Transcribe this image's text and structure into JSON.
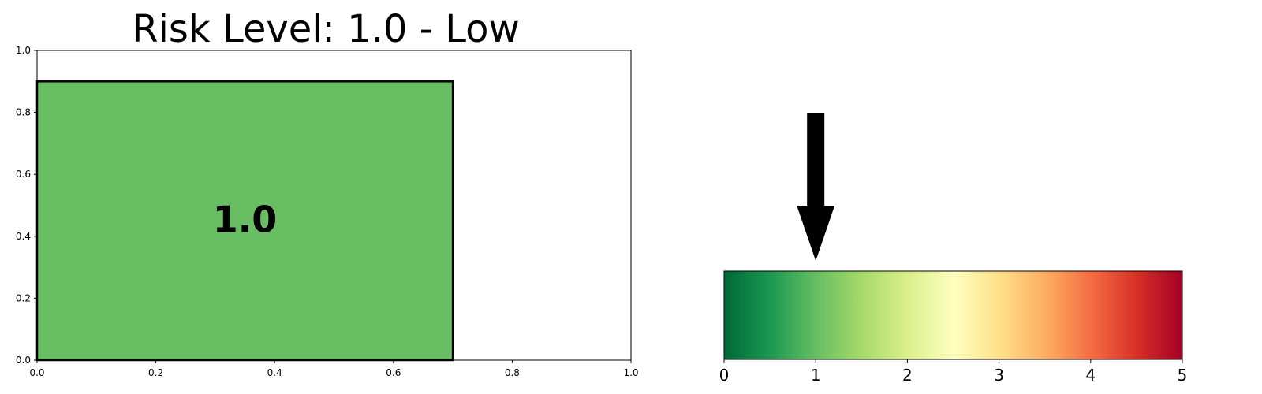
{
  "chart_data": [
    {
      "type": "bar",
      "title": "Risk Level: 1.0 - Low",
      "bar": {
        "x_start": 0.0,
        "x_end": 0.7,
        "height": 0.9,
        "label": "1.0",
        "color": "#69bd63",
        "edgecolor": "#000000"
      },
      "xlim": [
        0,
        1
      ],
      "ylim": [
        0,
        1
      ],
      "xticks": [
        "0.0",
        "0.2",
        "0.4",
        "0.6",
        "0.8",
        "1.0"
      ],
      "yticks": [
        "0.0",
        "0.2",
        "0.4",
        "0.6",
        "0.8",
        "1.0"
      ],
      "grid": false
    },
    {
      "type": "heatmap",
      "colormap": "RdYlGn_r",
      "colors": [
        "#006837",
        "#1a9850",
        "#66bd63",
        "#a6d96a",
        "#d9ef8b",
        "#ffffbf",
        "#fee08b",
        "#fdae61",
        "#f46d43",
        "#d73027",
        "#a50026"
      ],
      "range": [
        0,
        5
      ],
      "ticks": [
        "0",
        "1",
        "2",
        "3",
        "4",
        "5"
      ],
      "indicator_value": 1.0
    }
  ]
}
